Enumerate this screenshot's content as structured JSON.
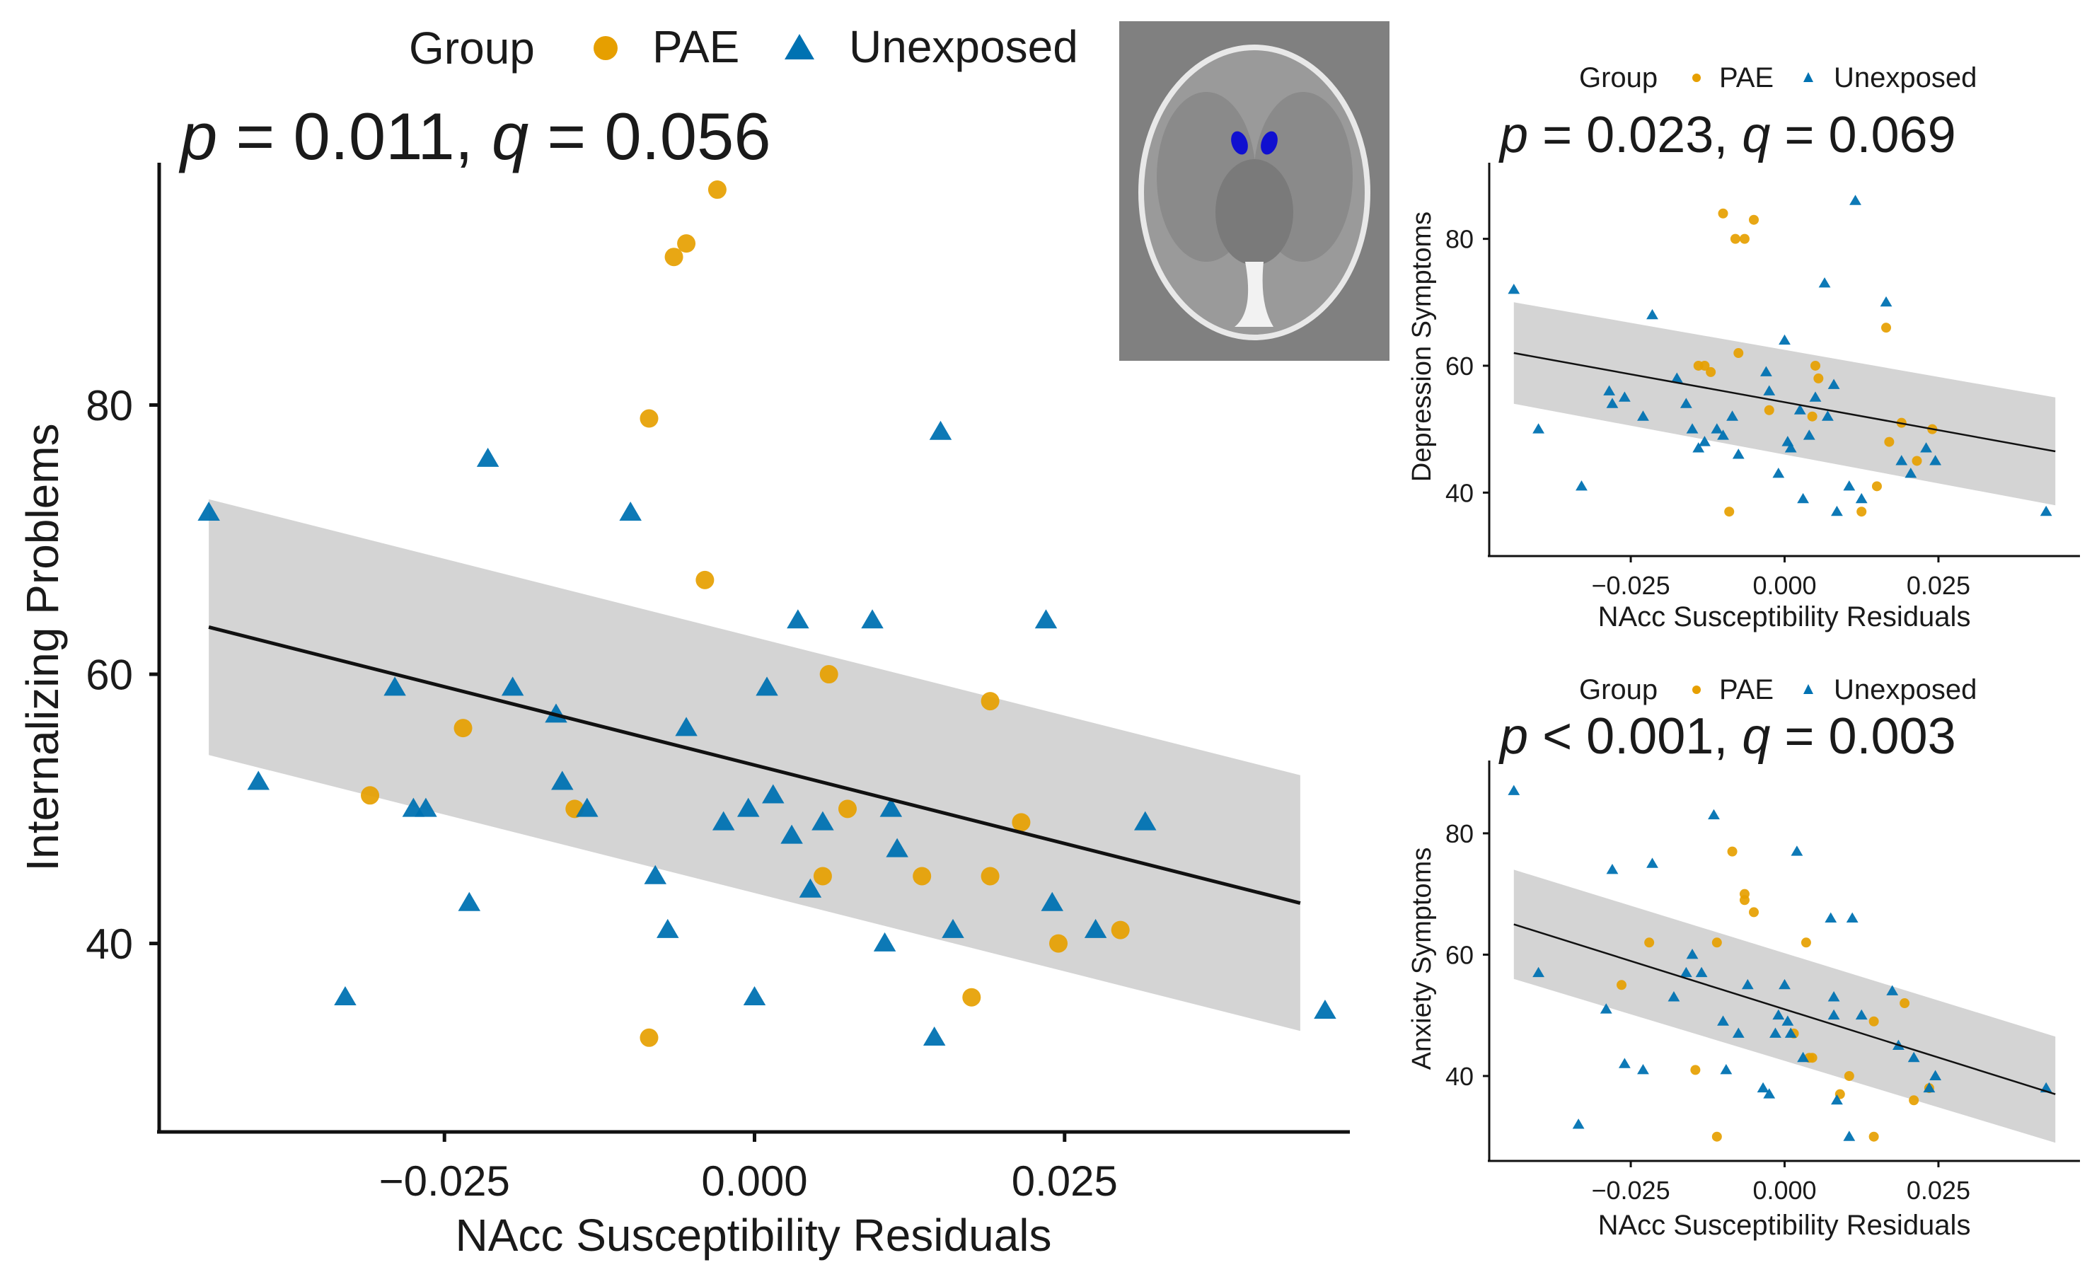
{
  "colors": {
    "pae": "#E69F00",
    "unexposed": "#0072B2",
    "ribbon": "#d4d4d4",
    "line": "#111111"
  },
  "legend": {
    "title": "Group",
    "items": [
      "PAE",
      "Unexposed"
    ]
  },
  "inset": {
    "description_icon": "brain-mri-axial-slice",
    "highlight_color": "#1010d0"
  },
  "chart_data": [
    {
      "id": "internalizing",
      "type": "scatter",
      "stat": {
        "p_label": "p",
        "p_op": "=",
        "p_value": "0.011",
        "q_label": "q",
        "q_op": "=",
        "q_value": "0.056"
      },
      "xlabel": "NAcc Susceptibility Residuals",
      "ylabel": "Internalizing Problems",
      "xlim": [
        -0.048,
        0.048
      ],
      "ylim": [
        26,
        98
      ],
      "xticks": [
        -0.025,
        0.0,
        0.025
      ],
      "xtick_labels": [
        "−0.025",
        "0.000",
        "0.025"
      ],
      "yticks": [
        40,
        60,
        80
      ],
      "ytick_labels": [
        "40",
        "60",
        "80"
      ],
      "fit": {
        "x": [
          -0.044,
          0.044
        ],
        "y": [
          63.5,
          43.0
        ],
        "upper": [
          73.0,
          52.5
        ],
        "lower": [
          54.0,
          33.5
        ]
      },
      "series": [
        {
          "name": "PAE",
          "points": [
            [
              -0.0085,
              79
            ],
            [
              -0.004,
              67
            ],
            [
              -0.0065,
              91
            ],
            [
              -0.0055,
              92
            ],
            [
              -0.003,
              96
            ],
            [
              -0.0235,
              56
            ],
            [
              -0.031,
              51
            ],
            [
              -0.0145,
              50
            ],
            [
              -0.0085,
              33
            ],
            [
              0.006,
              60
            ],
            [
              0.0055,
              45
            ],
            [
              0.0075,
              50
            ],
            [
              0.0135,
              45
            ],
            [
              0.0175,
              36
            ],
            [
              0.019,
              58
            ],
            [
              0.019,
              45
            ],
            [
              0.0215,
              49
            ],
            [
              0.0245,
              40
            ],
            [
              0.0295,
              41
            ]
          ]
        },
        {
          "name": "Unexposed",
          "points": [
            [
              -0.044,
              72
            ],
            [
              -0.04,
              52
            ],
            [
              -0.033,
              36
            ],
            [
              -0.029,
              59
            ],
            [
              -0.0275,
              50
            ],
            [
              -0.0265,
              50
            ],
            [
              -0.023,
              43
            ],
            [
              -0.0215,
              76
            ],
            [
              -0.0195,
              59
            ],
            [
              -0.016,
              57
            ],
            [
              -0.0155,
              52
            ],
            [
              -0.0135,
              50
            ],
            [
              -0.01,
              72
            ],
            [
              -0.008,
              45
            ],
            [
              -0.007,
              41
            ],
            [
              -0.0055,
              56
            ],
            [
              -0.0025,
              49
            ],
            [
              -0.0005,
              50
            ],
            [
              0.0,
              36
            ],
            [
              0.001,
              59
            ],
            [
              0.0015,
              51
            ],
            [
              0.003,
              48
            ],
            [
              0.0035,
              64
            ],
            [
              0.0045,
              44
            ],
            [
              0.0055,
              49
            ],
            [
              0.0095,
              64
            ],
            [
              0.0105,
              40
            ],
            [
              0.011,
              50
            ],
            [
              0.0115,
              47
            ],
            [
              0.0145,
              33
            ],
            [
              0.015,
              78
            ],
            [
              0.016,
              41
            ],
            [
              0.0235,
              64
            ],
            [
              0.024,
              43
            ],
            [
              0.0275,
              41
            ],
            [
              0.0315,
              49
            ],
            [
              0.046,
              35
            ]
          ]
        }
      ]
    },
    {
      "id": "depression",
      "type": "scatter",
      "stat": {
        "p_label": "p",
        "p_op": "=",
        "p_value": "0.023",
        "q_label": "q",
        "q_op": "=",
        "q_value": "0.069"
      },
      "xlabel": "NAcc Susceptibility Residuals",
      "ylabel": "Depression Symptoms",
      "xlim": [
        -0.048,
        0.048
      ],
      "ylim": [
        30,
        92
      ],
      "xticks": [
        -0.025,
        0.0,
        0.025
      ],
      "xtick_labels": [
        "−0.025",
        "0.000",
        "0.025"
      ],
      "yticks": [
        40,
        60,
        80
      ],
      "ytick_labels": [
        "40",
        "60",
        "80"
      ],
      "fit": {
        "x": [
          -0.044,
          0.044
        ],
        "y": [
          62.0,
          46.5
        ],
        "upper": [
          70.0,
          55.0
        ],
        "lower": [
          54.0,
          38.0
        ]
      },
      "series": [
        {
          "name": "PAE",
          "points": [
            [
              -0.01,
              84
            ],
            [
              -0.008,
              80
            ],
            [
              -0.0065,
              80
            ],
            [
              -0.005,
              83
            ],
            [
              -0.012,
              59
            ],
            [
              -0.0075,
              62
            ],
            [
              -0.009,
              37
            ],
            [
              -0.013,
              60
            ],
            [
              -0.014,
              60
            ],
            [
              0.005,
              60
            ],
            [
              0.0055,
              58
            ],
            [
              0.0045,
              52
            ],
            [
              0.0125,
              37
            ],
            [
              0.015,
              41
            ],
            [
              0.0165,
              66
            ],
            [
              0.017,
              48
            ],
            [
              0.019,
              51
            ],
            [
              0.0215,
              45
            ],
            [
              0.024,
              50
            ],
            [
              -0.0025,
              53
            ]
          ]
        },
        {
          "name": "Unexposed",
          "points": [
            [
              -0.044,
              72
            ],
            [
              -0.04,
              50
            ],
            [
              -0.033,
              41
            ],
            [
              -0.0285,
              56
            ],
            [
              -0.028,
              54
            ],
            [
              -0.026,
              55
            ],
            [
              -0.023,
              52
            ],
            [
              -0.0215,
              68
            ],
            [
              -0.0175,
              58
            ],
            [
              -0.016,
              54
            ],
            [
              -0.015,
              50
            ],
            [
              -0.014,
              47
            ],
            [
              -0.013,
              48
            ],
            [
              -0.011,
              50
            ],
            [
              -0.01,
              49
            ],
            [
              -0.0085,
              52
            ],
            [
              -0.0075,
              46
            ],
            [
              -0.003,
              59
            ],
            [
              -0.0025,
              56
            ],
            [
              -0.001,
              43
            ],
            [
              0.0,
              64
            ],
            [
              0.0005,
              48
            ],
            [
              0.001,
              47
            ],
            [
              0.0025,
              53
            ],
            [
              0.003,
              39
            ],
            [
              0.004,
              49
            ],
            [
              0.005,
              55
            ],
            [
              0.0065,
              73
            ],
            [
              0.007,
              52
            ],
            [
              0.008,
              57
            ],
            [
              0.0085,
              37
            ],
            [
              0.0105,
              41
            ],
            [
              0.0115,
              86
            ],
            [
              0.0125,
              39
            ],
            [
              0.0165,
              70
            ],
            [
              0.019,
              45
            ],
            [
              0.0205,
              43
            ],
            [
              0.023,
              47
            ],
            [
              0.0245,
              45
            ],
            [
              0.0425,
              37
            ]
          ]
        }
      ]
    },
    {
      "id": "anxiety",
      "type": "scatter",
      "stat": {
        "p_label": "p",
        "p_op": "<",
        "p_value": "0.001",
        "q_label": "q",
        "q_op": "=",
        "q_value": "0.003"
      },
      "xlabel": "NAcc Susceptibility Residuals",
      "ylabel": "Anxiety Symptoms",
      "xlim": [
        -0.048,
        0.048
      ],
      "ylim": [
        26,
        92
      ],
      "xticks": [
        -0.025,
        0.0,
        0.025
      ],
      "xtick_labels": [
        "−0.025",
        "0.000",
        "0.025"
      ],
      "yticks": [
        40,
        60,
        80
      ],
      "ytick_labels": [
        "40",
        "60",
        "80"
      ],
      "fit": {
        "x": [
          -0.044,
          0.044
        ],
        "y": [
          65.0,
          37.0
        ],
        "upper": [
          74.0,
          46.5
        ],
        "lower": [
          56.0,
          29.0
        ]
      },
      "series": [
        {
          "name": "PAE",
          "points": [
            [
              -0.0265,
              55
            ],
            [
              -0.022,
              62
            ],
            [
              -0.0145,
              41
            ],
            [
              -0.011,
              62
            ],
            [
              -0.011,
              30
            ],
            [
              -0.0085,
              77
            ],
            [
              -0.0065,
              70
            ],
            [
              -0.0065,
              69
            ],
            [
              -0.005,
              67
            ],
            [
              0.0015,
              47
            ],
            [
              0.0035,
              62
            ],
            [
              0.004,
              43
            ],
            [
              0.0045,
              43
            ],
            [
              0.009,
              37
            ],
            [
              0.0105,
              40
            ],
            [
              0.0145,
              49
            ],
            [
              0.0145,
              30
            ],
            [
              0.0195,
              52
            ],
            [
              0.021,
              36
            ],
            [
              0.0235,
              38
            ]
          ]
        },
        {
          "name": "Unexposed",
          "points": [
            [
              -0.044,
              87
            ],
            [
              -0.04,
              57
            ],
            [
              -0.0335,
              32
            ],
            [
              -0.029,
              51
            ],
            [
              -0.028,
              74
            ],
            [
              -0.026,
              42
            ],
            [
              -0.023,
              41
            ],
            [
              -0.0215,
              75
            ],
            [
              -0.018,
              53
            ],
            [
              -0.016,
              57
            ],
            [
              -0.015,
              60
            ],
            [
              -0.0135,
              57
            ],
            [
              -0.0115,
              83
            ],
            [
              -0.01,
              49
            ],
            [
              -0.0095,
              41
            ],
            [
              -0.0075,
              47
            ],
            [
              -0.006,
              55
            ],
            [
              -0.0035,
              38
            ],
            [
              -0.0025,
              37
            ],
            [
              -0.0015,
              47
            ],
            [
              -0.001,
              50
            ],
            [
              0.0,
              55
            ],
            [
              0.0005,
              49
            ],
            [
              0.001,
              47
            ],
            [
              0.002,
              77
            ],
            [
              0.003,
              43
            ],
            [
              0.0075,
              66
            ],
            [
              0.008,
              53
            ],
            [
              0.008,
              50
            ],
            [
              0.0085,
              36
            ],
            [
              0.0105,
              30
            ],
            [
              0.011,
              66
            ],
            [
              0.0125,
              50
            ],
            [
              0.0175,
              54
            ],
            [
              0.0185,
              45
            ],
            [
              0.021,
              43
            ],
            [
              0.0235,
              38
            ],
            [
              0.0245,
              40
            ],
            [
              0.0425,
              38
            ]
          ]
        }
      ]
    }
  ]
}
